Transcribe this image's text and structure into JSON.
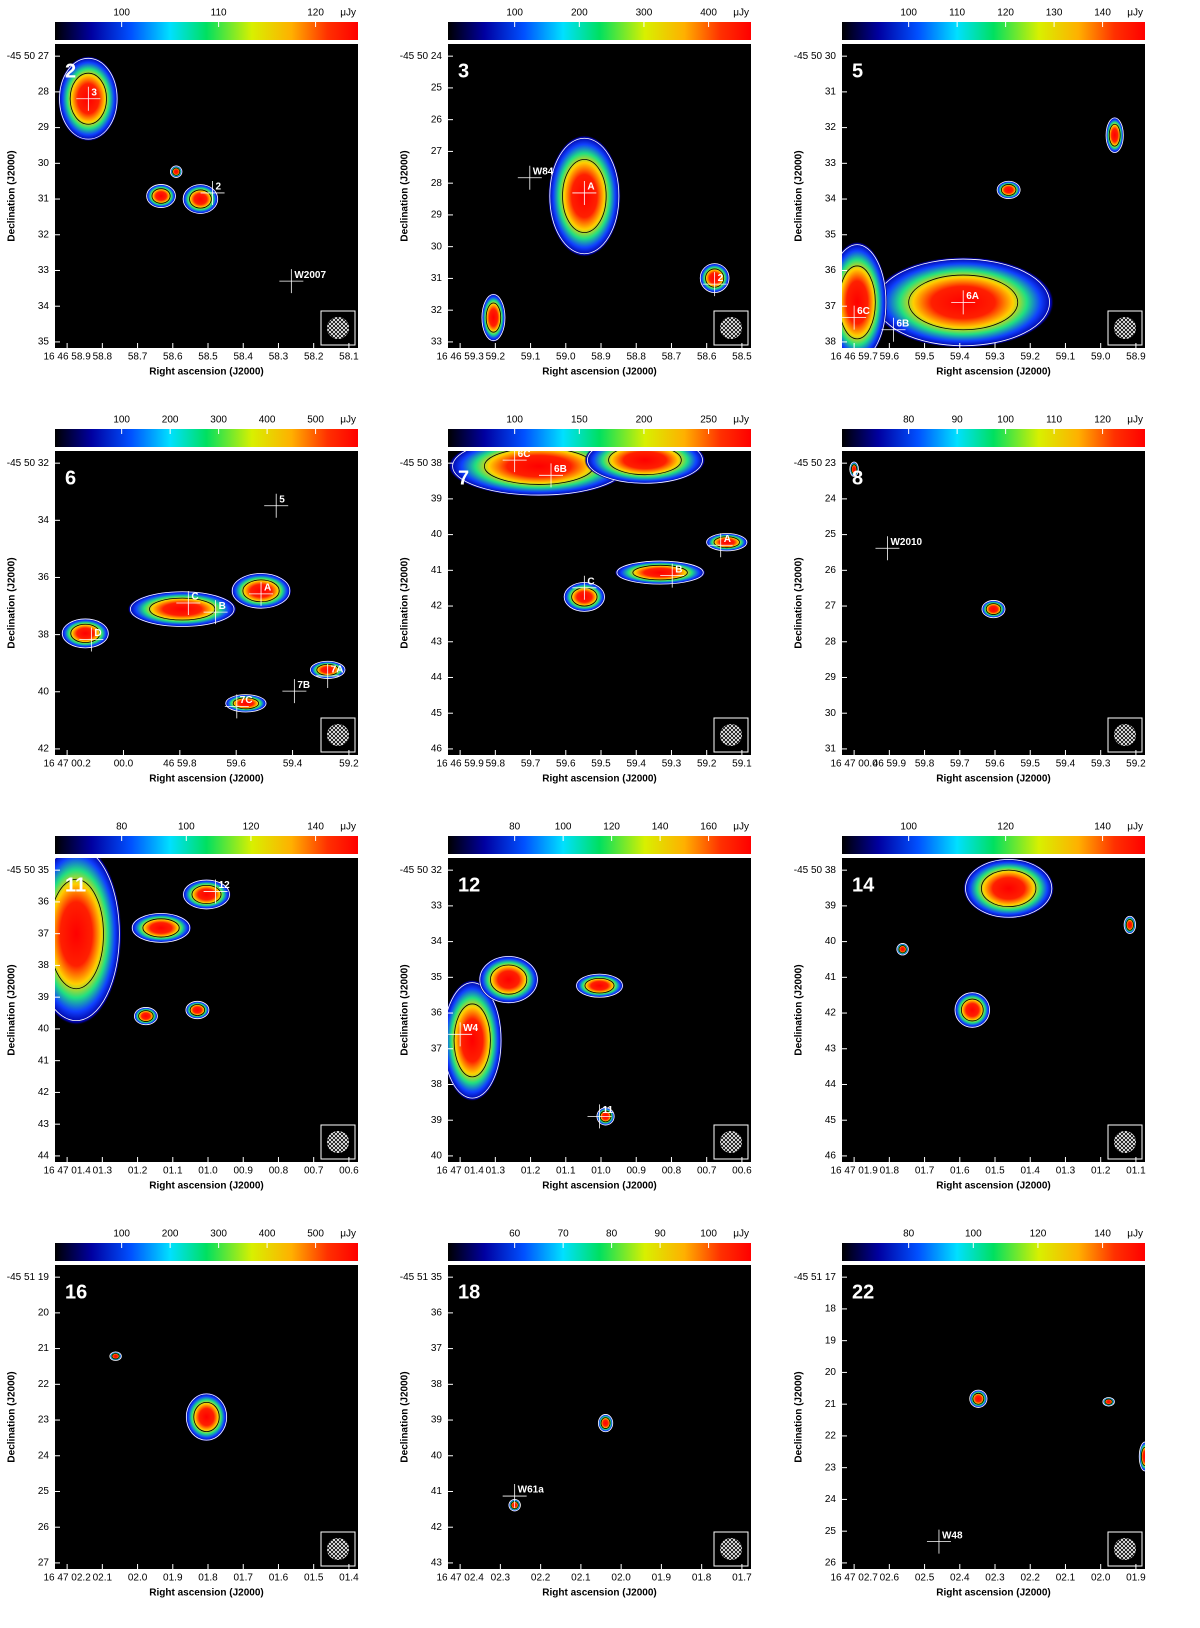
{
  "axis_labels": {
    "x": "Right ascension (J2000)",
    "y": "Declination (J2000)"
  },
  "panels": [
    {
      "label": "2",
      "colorbar": {
        "ticks": [
          "100",
          "110",
          "120"
        ],
        "unit": "μJy"
      },
      "yticks": [
        "-45 50 27",
        "28",
        "29",
        "30",
        "31",
        "32",
        "33",
        "34",
        "35"
      ],
      "xticks": [
        "16 46 58.9",
        "58.8",
        "58.7",
        "58.6",
        "58.5",
        "58.4",
        "58.3",
        "58.2",
        "58.1"
      ],
      "annotations": [
        "3",
        "2",
        "W2007"
      ]
    },
    {
      "label": "3",
      "colorbar": {
        "ticks": [
          "100",
          "200",
          "300",
          "400"
        ],
        "unit": "μJy"
      },
      "yticks": [
        "-45 50 24",
        "25",
        "26",
        "27",
        "28",
        "29",
        "30",
        "31",
        "32",
        "33"
      ],
      "xticks": [
        "16 46 59.3",
        "59.2",
        "59.1",
        "59.0",
        "58.9",
        "58.8",
        "58.7",
        "58.6",
        "58.5"
      ],
      "annotations": [
        "W84",
        "A",
        "2"
      ]
    },
    {
      "label": "5",
      "colorbar": {
        "ticks": [
          "100",
          "110",
          "120",
          "130",
          "140"
        ],
        "unit": "μJy"
      },
      "yticks": [
        "-45 50 30",
        "31",
        "32",
        "33",
        "34",
        "35",
        "36",
        "37",
        "38"
      ],
      "xticks": [
        "16 46 59.7",
        "59.6",
        "59.5",
        "59.4",
        "59.3",
        "59.2",
        "59.1",
        "59.0",
        "58.9"
      ],
      "annotations": [
        "6A",
        "6C",
        "6B"
      ]
    },
    {
      "label": "6",
      "colorbar": {
        "ticks": [
          "100",
          "200",
          "300",
          "400",
          "500"
        ],
        "unit": "μJy"
      },
      "yticks": [
        "-45 50 32",
        "34",
        "36",
        "38",
        "40",
        "42"
      ],
      "xticks": [
        "16 47 00.2",
        "00.0",
        "46 59.8",
        "59.6",
        "59.4",
        "59.2"
      ],
      "annotations": [
        "5",
        "A",
        "C",
        "B",
        "D",
        "7A",
        "7B",
        "7C"
      ]
    },
    {
      "label": "7",
      "colorbar": {
        "ticks": [
          "100",
          "150",
          "200",
          "250"
        ],
        "unit": "μJy"
      },
      "yticks": [
        "-45 50 38",
        "39",
        "40",
        "41",
        "42",
        "43",
        "44",
        "45",
        "46"
      ],
      "xticks": [
        "16 46 59.9",
        "59.8",
        "59.7",
        "59.6",
        "59.5",
        "59.4",
        "59.3",
        "59.2",
        "59.1"
      ],
      "annotations": [
        "6C",
        "6B",
        "A",
        "B",
        "C"
      ]
    },
    {
      "label": "8",
      "colorbar": {
        "ticks": [
          "80",
          "90",
          "100",
          "110",
          "120"
        ],
        "unit": "μJy"
      },
      "yticks": [
        "-45 50 23",
        "24",
        "25",
        "26",
        "27",
        "28",
        "29",
        "30",
        "31"
      ],
      "xticks": [
        "16 47 00.0",
        "46 59.9",
        "59.8",
        "59.7",
        "59.6",
        "59.5",
        "59.4",
        "59.3",
        "59.2"
      ],
      "annotations": [
        "W2010"
      ]
    },
    {
      "label": "11",
      "colorbar": {
        "ticks": [
          "80",
          "100",
          "120",
          "140"
        ],
        "unit": "μJy"
      },
      "yticks": [
        "-45 50 35",
        "36",
        "37",
        "38",
        "39",
        "40",
        "41",
        "42",
        "43",
        "44"
      ],
      "xticks": [
        "16 47 01.4",
        "01.3",
        "01.2",
        "01.1",
        "01.0",
        "00.9",
        "00.8",
        "00.7",
        "00.6"
      ],
      "annotations": [
        "12"
      ]
    },
    {
      "label": "12",
      "colorbar": {
        "ticks": [
          "80",
          "100",
          "120",
          "140",
          "160"
        ],
        "unit": "μJy"
      },
      "yticks": [
        "-45 50 32",
        "33",
        "34",
        "35",
        "36",
        "37",
        "38",
        "39",
        "40"
      ],
      "xticks": [
        "16 47 01.4",
        "01.3",
        "01.2",
        "01.1",
        "01.0",
        "00.9",
        "00.8",
        "00.7",
        "00.6"
      ],
      "annotations": [
        "W4",
        "11"
      ]
    },
    {
      "label": "14",
      "colorbar": {
        "ticks": [
          "100",
          "120",
          "140"
        ],
        "unit": "μJy"
      },
      "yticks": [
        "-45 50 38",
        "39",
        "40",
        "41",
        "42",
        "43",
        "44",
        "45",
        "46"
      ],
      "xticks": [
        "16 47 01.9",
        "01.8",
        "01.7",
        "01.6",
        "01.5",
        "01.4",
        "01.3",
        "01.2",
        "01.1"
      ],
      "annotations": []
    },
    {
      "label": "16",
      "colorbar": {
        "ticks": [
          "100",
          "200",
          "300",
          "400",
          "500"
        ],
        "unit": "μJy"
      },
      "yticks": [
        "-45 51 19",
        "20",
        "21",
        "22",
        "23",
        "24",
        "25",
        "26",
        "27"
      ],
      "xticks": [
        "16 47 02.2",
        "02.1",
        "02.0",
        "01.9",
        "01.8",
        "01.7",
        "01.6",
        "01.5",
        "01.4"
      ],
      "annotations": []
    },
    {
      "label": "18",
      "colorbar": {
        "ticks": [
          "60",
          "70",
          "80",
          "90",
          "100"
        ],
        "unit": "μJy"
      },
      "yticks": [
        "-45 51 35",
        "36",
        "37",
        "38",
        "39",
        "40",
        "41",
        "42",
        "43"
      ],
      "xticks": [
        "16 47 02.4",
        "02.3",
        "02.2",
        "02.1",
        "02.0",
        "01.9",
        "01.8",
        "01.7"
      ],
      "annotations": [
        "W61a"
      ]
    },
    {
      "label": "22",
      "colorbar": {
        "ticks": [
          "80",
          "100",
          "120",
          "140"
        ],
        "unit": "μJy"
      },
      "yticks": [
        "-45 51 17",
        "18",
        "19",
        "20",
        "21",
        "22",
        "23",
        "24",
        "25",
        "26"
      ],
      "xticks": [
        "16 47 02.7",
        "02.6",
        "02.5",
        "02.4",
        "02.3",
        "02.2",
        "02.1",
        "02.0",
        "01.9"
      ],
      "annotations": [
        "W48"
      ]
    }
  ]
}
